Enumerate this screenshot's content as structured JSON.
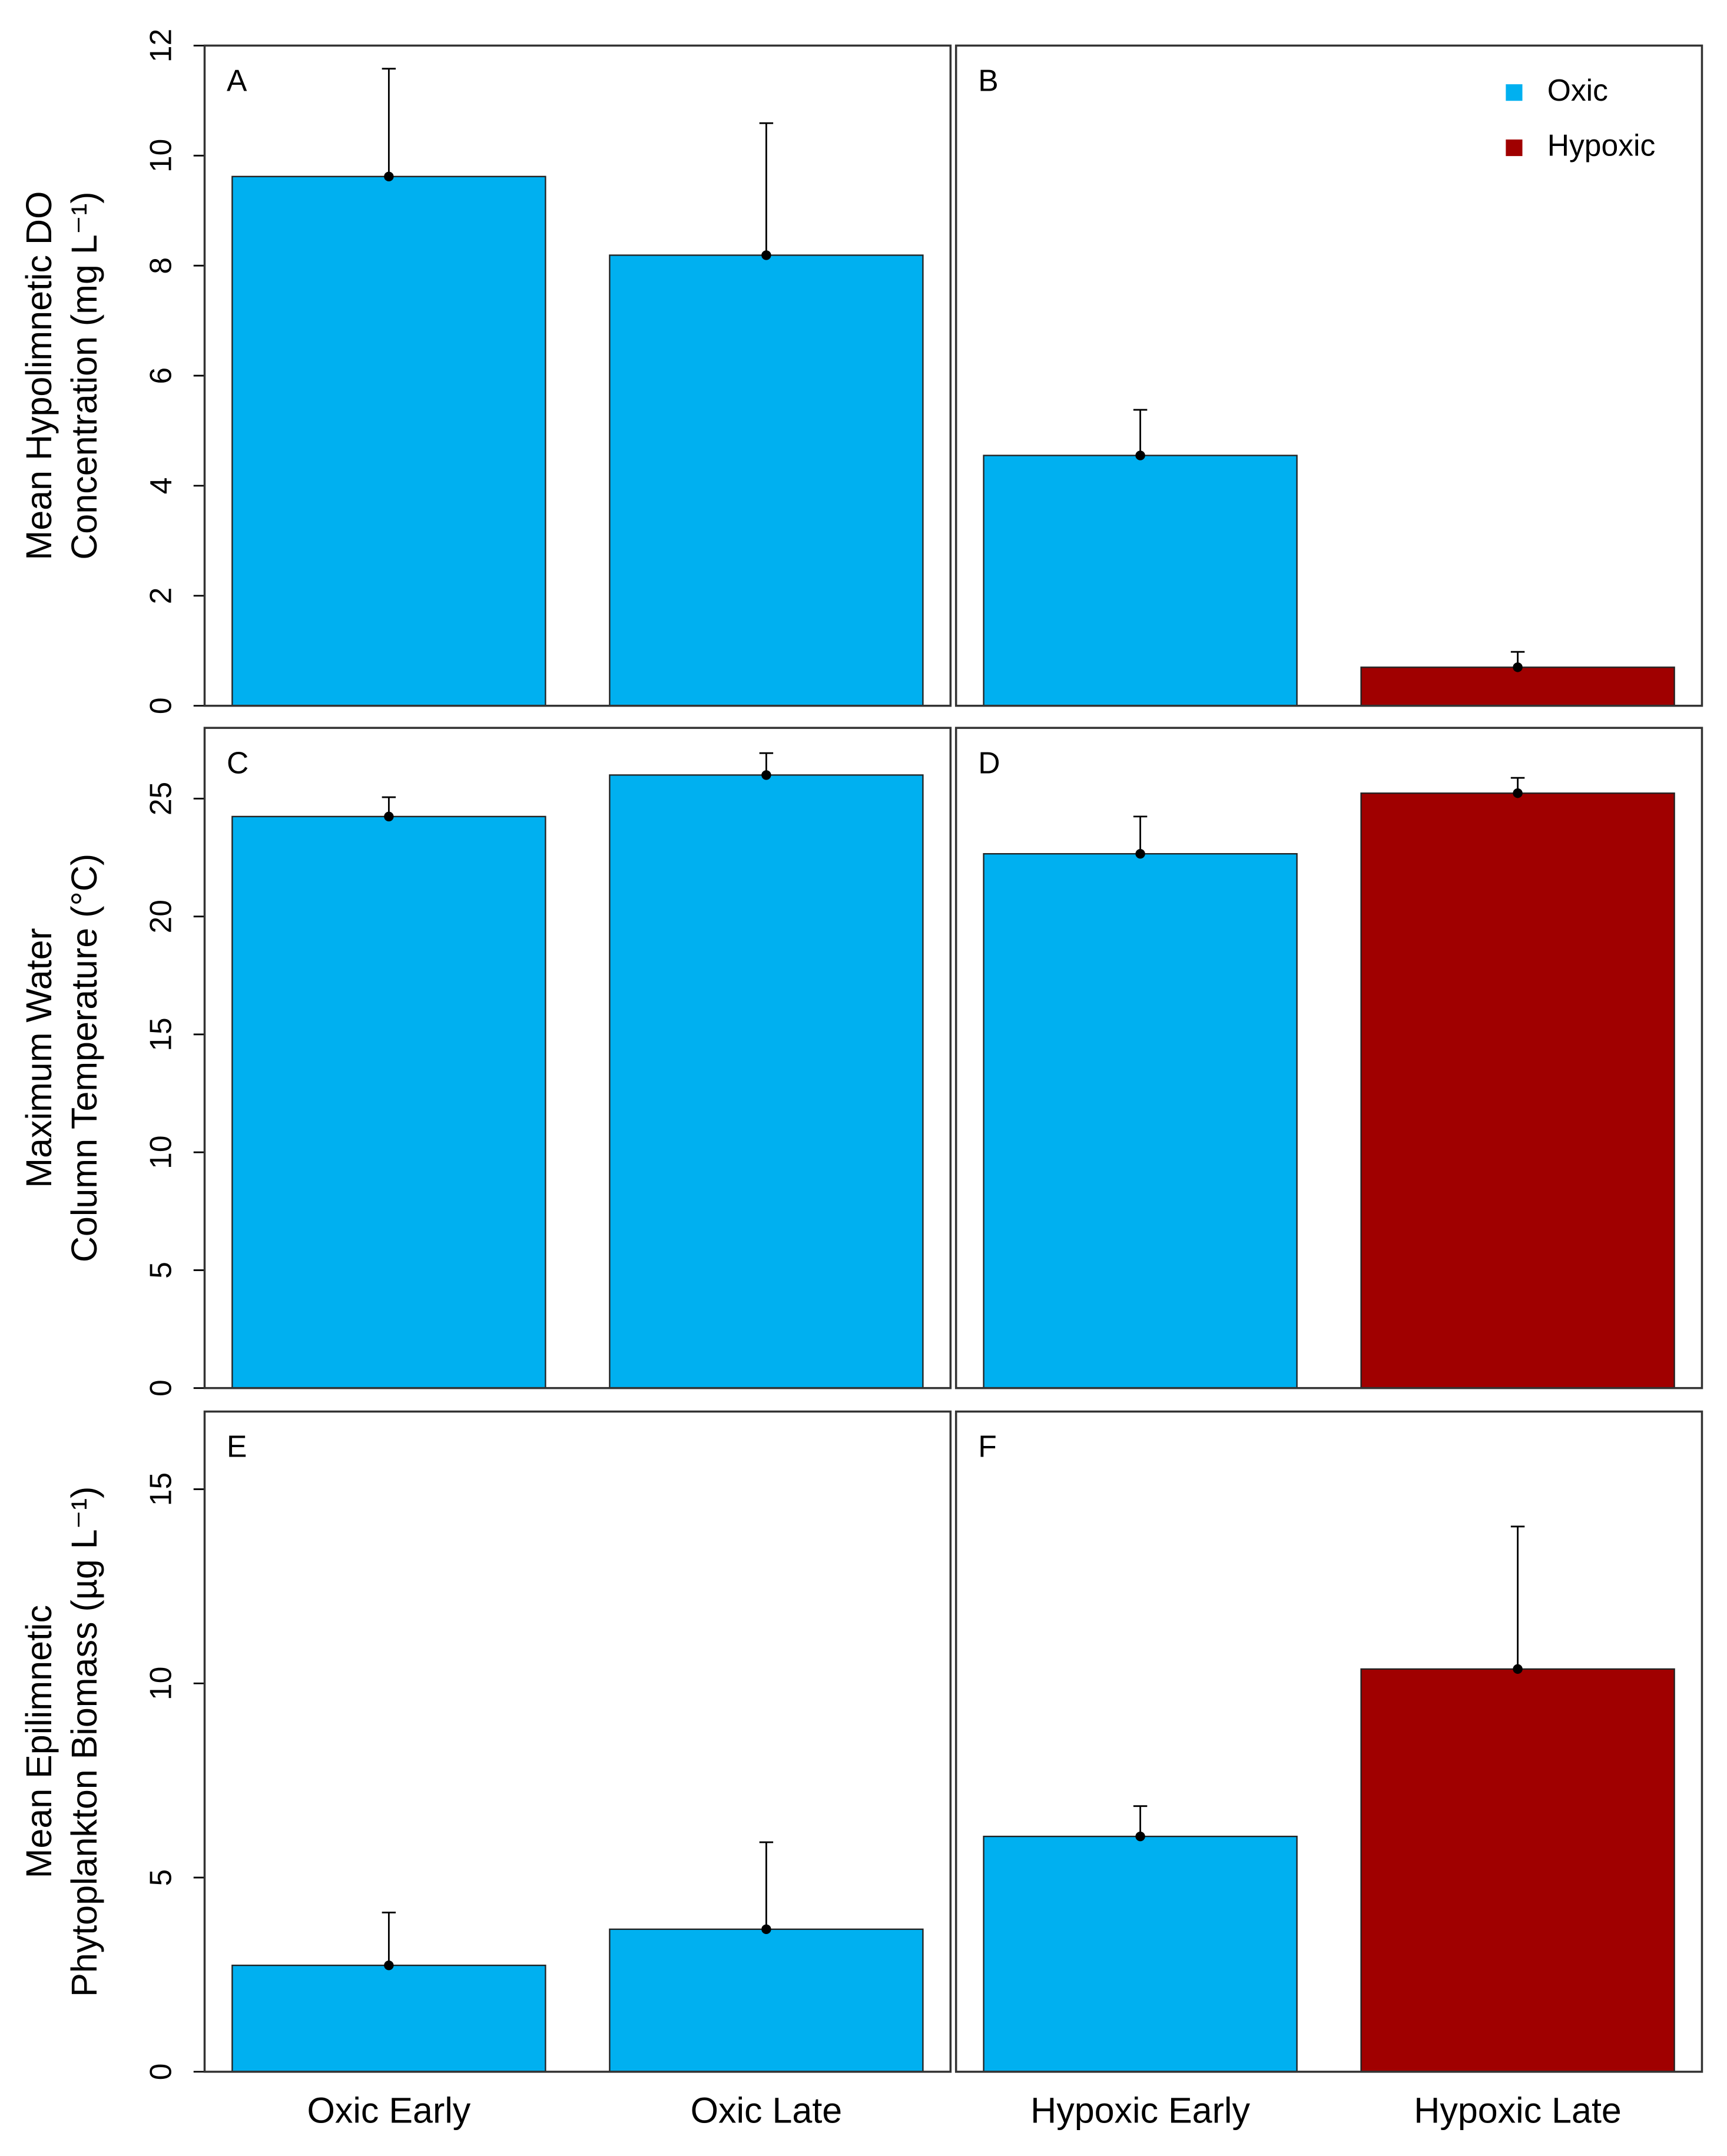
{
  "chart_data": [
    {
      "type": "bar",
      "title": "A",
      "ylabel": [
        "Mean Hypolimnetic DO",
        "Concentration (mg L⁻¹)"
      ],
      "categories": [
        null,
        null
      ],
      "values": [
        9.62,
        8.19
      ],
      "errors": [
        1.96,
        2.4
      ],
      "colors": [
        "#00b0f0",
        "#00b0f0"
      ],
      "ylim": [
        0,
        12
      ],
      "yticks": [
        0,
        2,
        4,
        6,
        8,
        10,
        12
      ]
    },
    {
      "type": "bar",
      "title": "B",
      "categories": [
        null,
        null
      ],
      "values": [
        4.55,
        0.7
      ],
      "errors": [
        0.83,
        0.28
      ],
      "colors": [
        "#00b0f0",
        "#a00000"
      ],
      "ylim": [
        0,
        12
      ],
      "legend": [
        {
          "name": "Oxic",
          "color": "#00b0f0"
        },
        {
          "name": "Hypoxic",
          "color": "#a00000"
        }
      ],
      "legend_position": "upper right"
    },
    {
      "type": "bar",
      "title": "C",
      "ylabel": [
        "Maximum Water",
        "Column Temperature (°C)"
      ],
      "categories": [
        null,
        null
      ],
      "values": [
        24.24,
        26.0
      ],
      "errors": [
        0.82,
        0.93
      ],
      "colors": [
        "#00b0f0",
        "#00b0f0"
      ],
      "ylim": [
        0,
        28
      ],
      "yticks": [
        0,
        5,
        10,
        15,
        20,
        25
      ]
    },
    {
      "type": "bar",
      "title": "D",
      "categories": [
        null,
        null
      ],
      "values": [
        22.66,
        25.23
      ],
      "errors": [
        1.58,
        0.65
      ],
      "colors": [
        "#00b0f0",
        "#a00000"
      ],
      "ylim": [
        0,
        28
      ]
    },
    {
      "type": "bar",
      "title": "E",
      "ylabel": [
        "Mean Epilimnetic",
        "Phytoplankton Biomass (µg L⁻¹)"
      ],
      "categories": [
        "Oxic Early",
        "Oxic Late"
      ],
      "values": [
        2.74,
        3.67
      ],
      "errors": [
        1.36,
        2.24
      ],
      "colors": [
        "#00b0f0",
        "#00b0f0"
      ],
      "ylim": [
        0,
        17
      ],
      "yticks": [
        0,
        5,
        10,
        15
      ]
    },
    {
      "type": "bar",
      "title": "F",
      "categories": [
        "Hypoxic Early",
        "Hypoxic Late"
      ],
      "values": [
        6.06,
        10.37
      ],
      "errors": [
        0.78,
        3.67
      ],
      "colors": [
        "#00b0f0",
        "#a00000"
      ],
      "ylim": [
        0,
        17
      ]
    }
  ]
}
